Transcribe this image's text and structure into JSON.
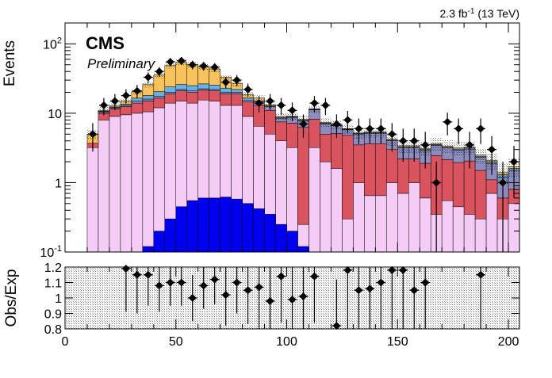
{
  "chart_data": {
    "type": "bar",
    "lumi_label": {
      "base": "2.3 fb",
      "exp": "-1",
      "suffix": " (13 TeV)"
    },
    "experiment": "CMS",
    "status": "Preliminary",
    "main_ylabel": "Events",
    "ratio_ylabel": "Obs/Exp",
    "xlim": [
      0,
      205
    ],
    "main_ylim": [
      0.1,
      200
    ],
    "main_yscale": "log",
    "main_yticks": [
      {
        "base": "10",
        "exp": "-1"
      },
      {
        "base": "1",
        "exp": ""
      },
      {
        "base": "10",
        "exp": ""
      },
      {
        "base": "10",
        "exp": "2"
      }
    ],
    "ratio_ylim": [
      0.8,
      1.2
    ],
    "ratio_yticks": [
      "0.8",
      "0.9",
      "1",
      "1.1",
      "1.2"
    ],
    "xticks": [
      "0",
      "50",
      "100",
      "150",
      "200"
    ],
    "bin_edges": [
      10,
      15,
      20,
      25,
      30,
      35,
      40,
      45,
      50,
      55,
      60,
      65,
      70,
      75,
      80,
      85,
      90,
      95,
      100,
      105,
      110,
      115,
      120,
      125,
      130,
      135,
      140,
      145,
      150,
      155,
      160,
      165,
      170,
      175,
      180,
      185,
      190,
      195,
      200,
      205
    ],
    "stack": [
      {
        "color": "#f5ccf5",
        "values": [
          3.2,
          8.0,
          9.0,
          9.5,
          10.0,
          10.5,
          12.0,
          14.0,
          15.0,
          14.0,
          15.5,
          15.0,
          13.0,
          13.0,
          9.0,
          6.5,
          5.0,
          4.0,
          3.2,
          0.25,
          3.2,
          2.0,
          1.6,
          0.3,
          1.0,
          0.65,
          0.65,
          1.0,
          0.7,
          1.0,
          0.6,
          0.35,
          0.55,
          0.45,
          0.35,
          0.3,
          0.7,
          0.3,
          0.5
        ]
      },
      {
        "color": "#d9545f",
        "values": [
          0.5,
          2.0,
          2.5,
          3.0,
          4.0,
          4.5,
          4.5,
          5.0,
          6.0,
          6.0,
          6.0,
          6.0,
          6.0,
          6.0,
          5.5,
          6.5,
          6.0,
          3.5,
          4.0,
          6.0,
          5.0,
          3.0,
          3.5,
          4.5,
          2.5,
          3.0,
          3.0,
          2.0,
          1.5,
          1.2,
          1.3,
          2.1,
          1.6,
          1.5,
          1.7,
          1.2,
          0.4,
          0.3,
          0.3
        ]
      },
      {
        "color": "#8c8cbf",
        "values": [
          0.0,
          0.5,
          0.5,
          0.5,
          1.0,
          1.0,
          1.0,
          1.0,
          1.0,
          1.0,
          1.0,
          1.0,
          1.0,
          1.0,
          1.0,
          1.5,
          1.5,
          1.0,
          1.5,
          1.5,
          3.0,
          2.0,
          1.5,
          1.0,
          1.5,
          1.5,
          1.5,
          1.0,
          1.0,
          1.0,
          1.0,
          1.0,
          1.0,
          1.0,
          1.0,
          0.8,
          0.8,
          0.6,
          0.7
        ]
      },
      {
        "color": "#66b2e6",
        "values": [
          0.0,
          0.2,
          0.3,
          0.5,
          1.5,
          2.0,
          3.0,
          4.0,
          4.0,
          4.0,
          4.0,
          3.5,
          3.0,
          2.0,
          1.0,
          0.5,
          0.3,
          0.2,
          0.2,
          0.2,
          0.2,
          0.2,
          0.1,
          0.1,
          0.1,
          0.1,
          0.1,
          0.1,
          0.1,
          0.1,
          0.1,
          0.1,
          0.1,
          0.1,
          0.1,
          0.1,
          0.1,
          0.1,
          0.1
        ]
      },
      {
        "color": "#f8c35c",
        "values": [
          1.3,
          0.3,
          0.5,
          1.5,
          4.0,
          8.0,
          15.0,
          25.0,
          28.0,
          25.0,
          20.0,
          18.0,
          10.0,
          5.0,
          2.0,
          1.5,
          0.5,
          0.3,
          0.2,
          0.2,
          0.2,
          0.2,
          0.1,
          0.1,
          0.1,
          0.1,
          0.1,
          0.1,
          0.1,
          0.1,
          0.1,
          0.1,
          0.1,
          0.1,
          0.1,
          0.1,
          0.1,
          0.1,
          0.1
        ]
      }
    ],
    "signal": {
      "color": "#0000ee",
      "values": [
        0,
        0,
        0,
        0,
        0,
        0.12,
        0.2,
        0.3,
        0.45,
        0.55,
        0.6,
        0.6,
        0.62,
        0.58,
        0.5,
        0.42,
        0.35,
        0.25,
        0.2,
        0.12,
        0,
        0,
        0,
        0,
        0,
        0,
        0,
        0,
        0,
        0,
        0,
        0,
        0,
        0,
        0,
        0,
        0,
        0,
        0
      ]
    },
    "data_points": [
      {
        "x": 12.5,
        "y": 5.0,
        "err": 2.2
      },
      {
        "x": 17.5,
        "y": 13.0,
        "err": 3.6
      },
      {
        "x": 22.5,
        "y": 15.0,
        "err": 3.9
      },
      {
        "x": 27.5,
        "y": 18.0,
        "err": 4.2
      },
      {
        "x": 32.5,
        "y": 21.0,
        "err": 4.6
      },
      {
        "x": 37.5,
        "y": 33.0,
        "err": 5.7
      },
      {
        "x": 42.5,
        "y": 40.0,
        "err": 6.3
      },
      {
        "x": 47.5,
        "y": 55.0,
        "err": 7.4
      },
      {
        "x": 52.5,
        "y": 57.0,
        "err": 7.5
      },
      {
        "x": 57.5,
        "y": 50.0,
        "err": 7.1
      },
      {
        "x": 62.5,
        "y": 48.0,
        "err": 6.9
      },
      {
        "x": 67.5,
        "y": 46.0,
        "err": 6.8
      },
      {
        "x": 72.5,
        "y": 28.0,
        "err": 5.3
      },
      {
        "x": 77.5,
        "y": 30.0,
        "err": 5.5
      },
      {
        "x": 82.5,
        "y": 22.0,
        "err": 4.7
      },
      {
        "x": 87.5,
        "y": 14.0,
        "err": 3.7
      },
      {
        "x": 92.5,
        "y": 15.0,
        "err": 3.9
      },
      {
        "x": 97.5,
        "y": 13.0,
        "err": 3.6
      },
      {
        "x": 102.5,
        "y": 11.0,
        "err": 3.3
      },
      {
        "x": 107.5,
        "y": 7.0,
        "err": 2.6
      },
      {
        "x": 112.5,
        "y": 14.0,
        "err": 3.7
      },
      {
        "x": 117.5,
        "y": 13.0,
        "err": 3.6
      },
      {
        "x": 122.5,
        "y": 7.0,
        "err": 2.6
      },
      {
        "x": 127.5,
        "y": 8.0,
        "err": 2.8
      },
      {
        "x": 132.5,
        "y": 6.0,
        "err": 2.4
      },
      {
        "x": 137.5,
        "y": 6.0,
        "err": 2.4
      },
      {
        "x": 142.5,
        "y": 6.0,
        "err": 2.4
      },
      {
        "x": 147.5,
        "y": 5.0,
        "err": 2.2
      },
      {
        "x": 152.5,
        "y": 4.0,
        "err": 2.0
      },
      {
        "x": 157.5,
        "y": 4.0,
        "err": 2.0
      },
      {
        "x": 162.5,
        "y": 3.5,
        "err": 1.9
      },
      {
        "x": 167.5,
        "y": 1.0,
        "err": 1.0
      },
      {
        "x": 172.5,
        "y": 7.5,
        "err": 2.7
      },
      {
        "x": 177.5,
        "y": 6.0,
        "err": 2.4
      },
      {
        "x": 182.5,
        "y": 3.5,
        "err": 1.9
      },
      {
        "x": 187.5,
        "y": 6.0,
        "err": 2.4
      },
      {
        "x": 192.5,
        "y": 3.0,
        "err": 1.7
      },
      {
        "x": 197.5,
        "y": 1.0,
        "err": 1.0
      },
      {
        "x": 202.5,
        "y": 2.0,
        "err": 1.4
      }
    ],
    "ratio_points": [
      {
        "x": 27.5,
        "y": 1.19,
        "err": 0.28
      },
      {
        "x": 32.5,
        "y": 1.15,
        "err": 0.25
      },
      {
        "x": 37.5,
        "y": 1.15,
        "err": 0.2
      },
      {
        "x": 42.5,
        "y": 1.08,
        "err": 0.17
      },
      {
        "x": 47.5,
        "y": 1.1,
        "err": 0.15
      },
      {
        "x": 52.5,
        "y": 1.1,
        "err": 0.15
      },
      {
        "x": 57.5,
        "y": 1.0,
        "err": 0.15
      },
      {
        "x": 62.5,
        "y": 1.08,
        "err": 0.15
      },
      {
        "x": 67.5,
        "y": 1.12,
        "err": 0.16
      },
      {
        "x": 72.5,
        "y": 1.02,
        "err": 0.2
      },
      {
        "x": 77.5,
        "y": 1.1,
        "err": 0.2
      },
      {
        "x": 82.5,
        "y": 1.05,
        "err": 0.22
      },
      {
        "x": 87.5,
        "y": 1.07,
        "err": 0.27
      },
      {
        "x": 92.5,
        "y": 0.98,
        "err": 0.27
      },
      {
        "x": 97.5,
        "y": 1.14,
        "err": 0.3
      },
      {
        "x": 102.5,
        "y": 0.99,
        "err": 0.3
      },
      {
        "x": 107.5,
        "y": 1.01,
        "err": 0.38
      },
      {
        "x": 112.5,
        "y": 1.14,
        "err": 0.3
      },
      {
        "x": 122.5,
        "y": 0.82,
        "err": 0.3
      },
      {
        "x": 127.5,
        "y": 1.18,
        "err": 0.4
      },
      {
        "x": 132.5,
        "y": 1.05,
        "err": 0.4
      },
      {
        "x": 137.5,
        "y": 1.06,
        "err": 0.4
      },
      {
        "x": 142.5,
        "y": 1.1,
        "err": 0.4
      },
      {
        "x": 147.5,
        "y": 1.18,
        "err": 0.45
      },
      {
        "x": 152.5,
        "y": 1.18,
        "err": 0.45
      },
      {
        "x": 157.5,
        "y": 1.05,
        "err": 0.5
      },
      {
        "x": 162.5,
        "y": 1.1,
        "err": 0.5
      },
      {
        "x": 187.5,
        "y": 1.15,
        "err": 0.55
      }
    ]
  }
}
